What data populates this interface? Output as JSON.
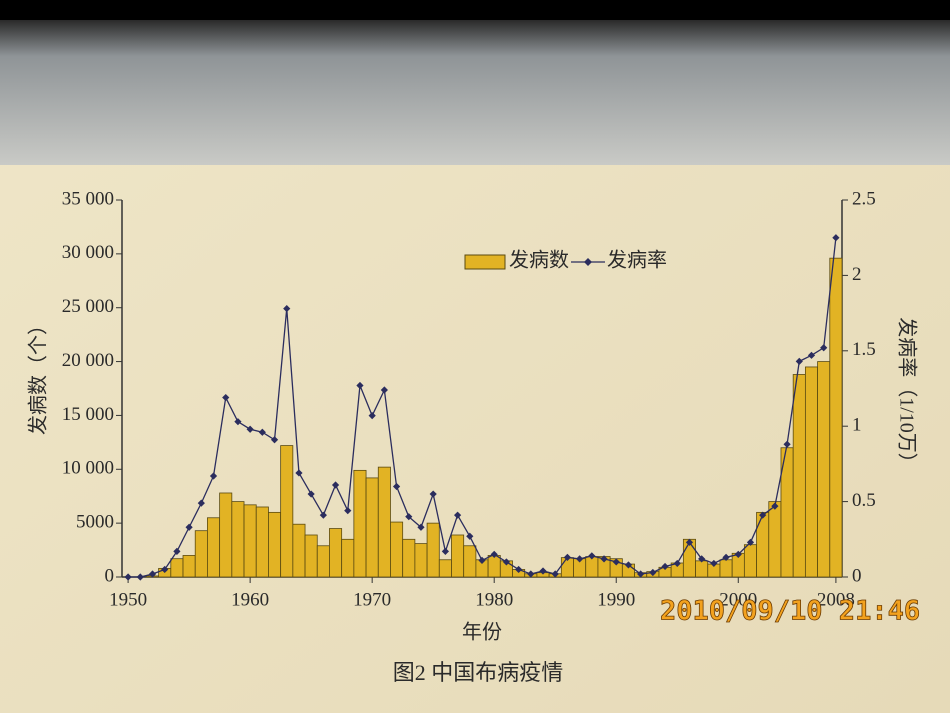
{
  "chart_data": {
    "type": "bar",
    "title": "图2  中国布病疫情",
    "xlabel": "年份",
    "ylabel": "发病数（个）",
    "y2label": "发病率（1/10万）",
    "x": [
      1950,
      1951,
      1952,
      1953,
      1954,
      1955,
      1956,
      1957,
      1958,
      1959,
      1960,
      1961,
      1962,
      1963,
      1964,
      1965,
      1966,
      1967,
      1968,
      1969,
      1970,
      1971,
      1972,
      1973,
      1974,
      1975,
      1976,
      1977,
      1978,
      1979,
      1980,
      1981,
      1982,
      1983,
      1984,
      1985,
      1986,
      1987,
      1988,
      1989,
      1990,
      1991,
      1992,
      1993,
      1994,
      1995,
      1996,
      1997,
      1998,
      1999,
      2000,
      2001,
      2002,
      2003,
      2004,
      2005,
      2006,
      2007,
      2008
    ],
    "series": [
      {
        "name": "发病数",
        "type": "bar",
        "color": "#e2b324",
        "values": [
          0,
          0,
          100,
          800,
          1700,
          2000,
          4300,
          5500,
          7800,
          7000,
          6700,
          6500,
          6000,
          12200,
          4900,
          3900,
          2900,
          4500,
          3500,
          9900,
          9200,
          10200,
          5100,
          3500,
          3100,
          5000,
          1600,
          3900,
          2900,
          1600,
          2000,
          1500,
          700,
          300,
          400,
          300,
          1800,
          1700,
          1900,
          1900,
          1700,
          1200,
          400,
          500,
          900,
          1300,
          3500,
          1500,
          1200,
          1600,
          2200,
          3000,
          6000,
          7000,
          12000,
          18800,
          19500,
          20000,
          29600
        ]
      },
      {
        "name": "发病率",
        "type": "line",
        "axis": "y2",
        "color": "#2b2d5e",
        "values": [
          0,
          0,
          0.02,
          0.05,
          0.17,
          0.33,
          0.49,
          0.67,
          1.19,
          1.03,
          0.98,
          0.96,
          0.91,
          1.78,
          0.69,
          0.55,
          0.41,
          0.61,
          0.44,
          1.27,
          1.07,
          1.24,
          0.6,
          0.4,
          0.33,
          0.55,
          0.17,
          0.41,
          0.27,
          0.11,
          0.15,
          0.1,
          0.05,
          0.02,
          0.04,
          0.02,
          0.13,
          0.12,
          0.14,
          0.12,
          0.1,
          0.08,
          0.02,
          0.03,
          0.07,
          0.09,
          0.23,
          0.12,
          0.09,
          0.13,
          0.15,
          0.23,
          0.41,
          0.47,
          0.88,
          1.43,
          1.47,
          1.52,
          2.25
        ]
      }
    ],
    "xlim": [
      1949.5,
      2008.5
    ],
    "xticks": [
      1950,
      1960,
      1970,
      1980,
      1990,
      2000,
      2008
    ],
    "ylim": [
      0,
      35000
    ],
    "yticks": [
      0,
      5000,
      {
        "value": 10000,
        "label": "10 000"
      },
      {
        "value": 15000,
        "label": "15 000"
      },
      {
        "value": 20000,
        "label": "20 000"
      },
      {
        "value": 25000,
        "label": "25 000"
      },
      {
        "value": 30000,
        "label": "30 000"
      },
      {
        "value": 35000,
        "label": "35 000"
      }
    ],
    "y2lim": [
      0,
      2.5
    ],
    "y2ticks": [
      0,
      0.5,
      1,
      1.5,
      2,
      2.5
    ],
    "grid": false,
    "legend": "top"
  },
  "timestamp": "2010/09/10 21:46"
}
